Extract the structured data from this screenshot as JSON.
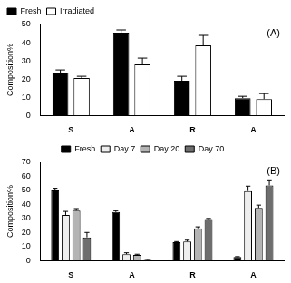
{
  "chart_data": [
    {
      "type": "bar",
      "annotation": "(A)",
      "y_label": "Composition%",
      "categories": [
        "S",
        "A",
        "R",
        "A"
      ],
      "series": [
        {
          "name": "Fresh",
          "color": "#000000",
          "values": [
            23.5,
            45.5,
            19,
            9.5
          ],
          "errors": [
            1.5,
            1.5,
            2.5,
            1
          ]
        },
        {
          "name": "Irradiated",
          "color": "#ffffff",
          "values": [
            20.5,
            28,
            38.5,
            9
          ],
          "errors": [
            1,
            3.5,
            5.5,
            3
          ]
        }
      ],
      "ylim": [
        0,
        50
      ],
      "yticks": [
        0,
        10,
        20,
        30,
        40,
        50
      ],
      "grid": false,
      "legend": "top left"
    },
    {
      "type": "bar",
      "annotation": "(B)",
      "y_label": "Composition%",
      "categories": [
        "S",
        "A",
        "R",
        "A"
      ],
      "series": [
        {
          "name": "Fresh",
          "color": "#000000",
          "values": [
            50,
            34.5,
            13,
            2.5
          ],
          "errors": [
            1.5,
            1,
            0.5,
            0.3
          ]
        },
        {
          "name": "Day 7",
          "color": "#eeeeee",
          "values": [
            32.5,
            4.5,
            13.5,
            49.5
          ],
          "errors": [
            2.5,
            1,
            1,
            3.5
          ]
        },
        {
          "name": "Day 20",
          "color": "#b4b4b4",
          "values": [
            35.5,
            4,
            23,
            37.5
          ],
          "errors": [
            1.5,
            0.5,
            1,
            2
          ]
        },
        {
          "name": "Day 70",
          "color": "#6e6e6e",
          "values": [
            16.5,
            0.5,
            29.5,
            53.5
          ],
          "errors": [
            3.5,
            0.3,
            0.5,
            4
          ]
        }
      ],
      "ylim": [
        0,
        70
      ],
      "yticks": [
        0,
        10,
        20,
        30,
        40,
        50,
        60,
        70
      ],
      "grid": false,
      "legend": "top"
    }
  ]
}
